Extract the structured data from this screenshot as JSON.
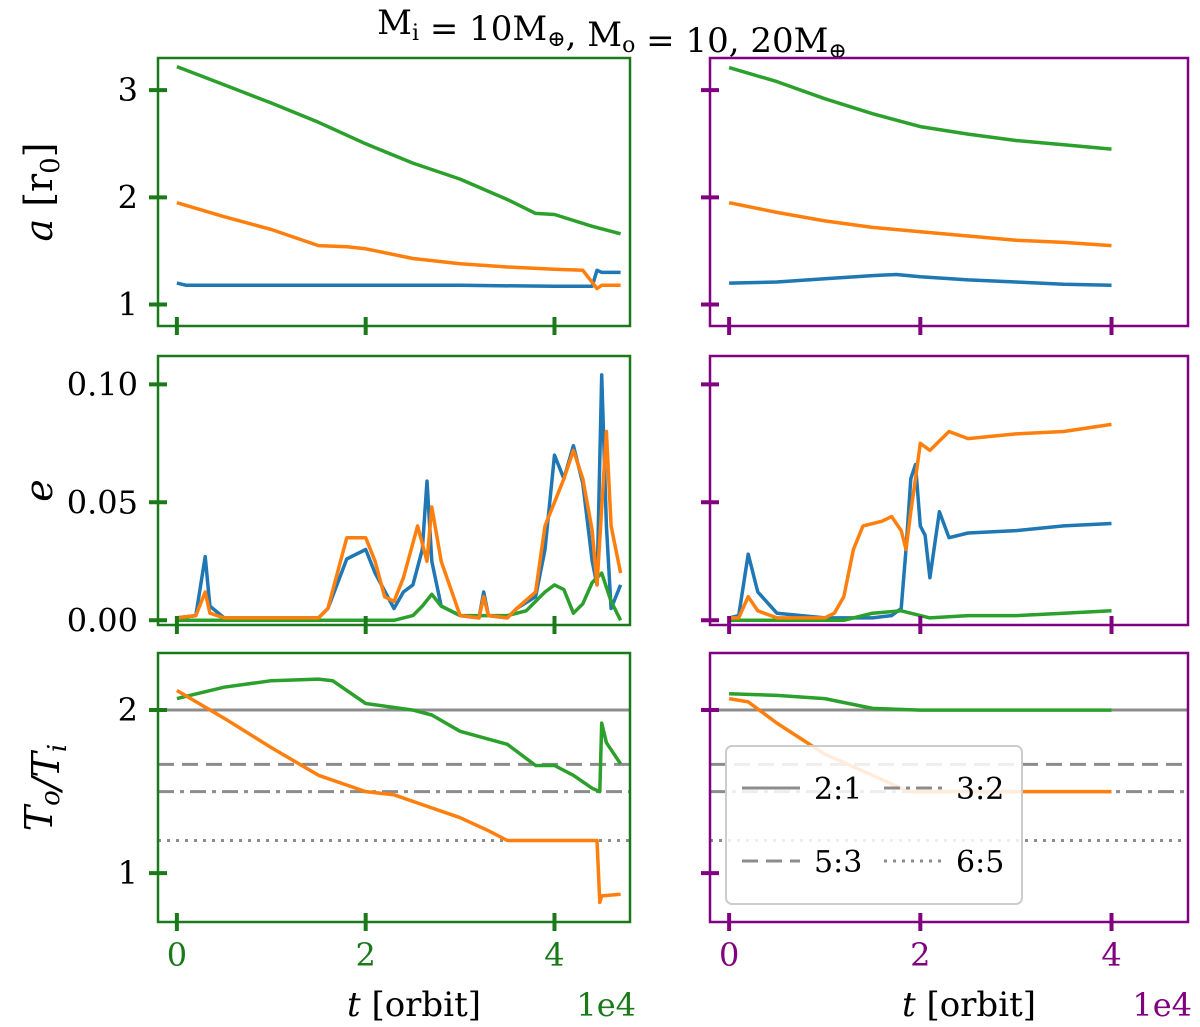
{
  "figure": {
    "title_main": "M",
    "title_html_parts": [
      "M",
      "i",
      " = 10M",
      "⊕",
      ", M",
      "o",
      " = 10, 20M",
      "⊕"
    ],
    "left_color": "#1a7a1a",
    "right_color": "#800080"
  },
  "chart_data": {
    "type": "line",
    "title": "Mi = 10M⊕, Mo = 10, 20M⊕",
    "xlabel": "t [orbit]",
    "x_offset_label": "1e4",
    "xlim": [
      -0.2,
      4.8
    ],
    "xticks": [
      0,
      2,
      4
    ],
    "colors": {
      "inner": "#1f77b4",
      "outer": "#ff7f0e",
      "third": "#2ca02c",
      "resonance": "#8c8c8c"
    },
    "rows": [
      {
        "ylabel": "a [r0]",
        "ylim": [
          0.8,
          3.3
        ],
        "yticks": [
          1,
          2,
          3
        ]
      },
      {
        "ylabel": "e",
        "ylim": [
          -0.002,
          0.112
        ],
        "yticks": [
          0.0,
          0.05,
          0.1
        ],
        "ytick_labels": [
          "0.00",
          "0.05",
          "0.10"
        ]
      },
      {
        "ylabel": "To/Ti",
        "ylim": [
          0.7,
          2.35
        ],
        "yticks": [
          1,
          2
        ]
      }
    ],
    "resonances": [
      {
        "label": "2:1",
        "value": 2.0,
        "style": "solid"
      },
      {
        "label": "5:3",
        "value": 1.667,
        "style": "dashed"
      },
      {
        "label": "3:2",
        "value": 1.5,
        "style": "dashdot"
      },
      {
        "label": "6:5",
        "value": 1.2,
        "style": "dotted"
      }
    ],
    "panels": [
      {
        "name": "left",
        "frame_color": "#1a7a1a",
        "a": {
          "inner": [
            [
              0,
              1.2
            ],
            [
              0.1,
              1.18
            ],
            [
              1,
              1.18
            ],
            [
              2,
              1.18
            ],
            [
              3,
              1.18
            ],
            [
              4,
              1.17
            ],
            [
              4.4,
              1.17
            ],
            [
              4.45,
              1.32
            ],
            [
              4.5,
              1.3
            ],
            [
              4.7,
              1.3
            ]
          ],
          "outer": [
            [
              0,
              1.95
            ],
            [
              0.5,
              1.82
            ],
            [
              1,
              1.7
            ],
            [
              1.5,
              1.55
            ],
            [
              1.8,
              1.54
            ],
            [
              2,
              1.52
            ],
            [
              2.5,
              1.43
            ],
            [
              3,
              1.38
            ],
            [
              3.5,
              1.35
            ],
            [
              4,
              1.33
            ],
            [
              4.3,
              1.32
            ],
            [
              4.45,
              1.15
            ],
            [
              4.5,
              1.18
            ],
            [
              4.7,
              1.18
            ]
          ],
          "third": [
            [
              0,
              3.22
            ],
            [
              0.5,
              3.05
            ],
            [
              1,
              2.88
            ],
            [
              1.5,
              2.7
            ],
            [
              2,
              2.5
            ],
            [
              2.5,
              2.32
            ],
            [
              3,
              2.17
            ],
            [
              3.5,
              1.98
            ],
            [
              3.8,
              1.85
            ],
            [
              4,
              1.84
            ],
            [
              4.4,
              1.73
            ],
            [
              4.7,
              1.66
            ]
          ]
        },
        "e": {
          "inner": [
            [
              0,
              0.001
            ],
            [
              0.2,
              0.002
            ],
            [
              0.3,
              0.027
            ],
            [
              0.35,
              0.006
            ],
            [
              0.5,
              0.001
            ],
            [
              1,
              0.001
            ],
            [
              1.5,
              0.001
            ],
            [
              1.6,
              0.005
            ],
            [
              1.8,
              0.026
            ],
            [
              2,
              0.03
            ],
            [
              2.1,
              0.02
            ],
            [
              2.3,
              0.005
            ],
            [
              2.4,
              0.012
            ],
            [
              2.5,
              0.015
            ],
            [
              2.6,
              0.03
            ],
            [
              2.65,
              0.059
            ],
            [
              2.7,
              0.025
            ],
            [
              2.8,
              0.006
            ],
            [
              3,
              0.002
            ],
            [
              3.2,
              0.001
            ],
            [
              3.25,
              0.012
            ],
            [
              3.3,
              0.002
            ],
            [
              3.5,
              0.001
            ],
            [
              3.6,
              0.005
            ],
            [
              3.8,
              0.01
            ],
            [
              3.9,
              0.03
            ],
            [
              4,
              0.07
            ],
            [
              4.1,
              0.06
            ],
            [
              4.2,
              0.074
            ],
            [
              4.3,
              0.058
            ],
            [
              4.4,
              0.025
            ],
            [
              4.45,
              0.015
            ],
            [
              4.5,
              0.104
            ],
            [
              4.55,
              0.04
            ],
            [
              4.6,
              0.005
            ],
            [
              4.7,
              0.015
            ]
          ],
          "outer": [
            [
              0,
              0.001
            ],
            [
              0.2,
              0.002
            ],
            [
              0.3,
              0.012
            ],
            [
              0.35,
              0.003
            ],
            [
              0.5,
              0.001
            ],
            [
              1,
              0.001
            ],
            [
              1.5,
              0.001
            ],
            [
              1.6,
              0.005
            ],
            [
              1.8,
              0.035
            ],
            [
              2,
              0.035
            ],
            [
              2.1,
              0.025
            ],
            [
              2.2,
              0.01
            ],
            [
              2.3,
              0.008
            ],
            [
              2.4,
              0.018
            ],
            [
              2.55,
              0.04
            ],
            [
              2.65,
              0.025
            ],
            [
              2.7,
              0.048
            ],
            [
              2.8,
              0.025
            ],
            [
              3,
              0.002
            ],
            [
              3.2,
              0.001
            ],
            [
              3.25,
              0.01
            ],
            [
              3.3,
              0.002
            ],
            [
              3.5,
              0.001
            ],
            [
              3.6,
              0.005
            ],
            [
              3.8,
              0.012
            ],
            [
              3.9,
              0.04
            ],
            [
              4,
              0.05
            ],
            [
              4.1,
              0.06
            ],
            [
              4.2,
              0.072
            ],
            [
              4.3,
              0.06
            ],
            [
              4.4,
              0.038
            ],
            [
              4.45,
              0.015
            ],
            [
              4.55,
              0.08
            ],
            [
              4.6,
              0.04
            ],
            [
              4.7,
              0.02
            ]
          ],
          "third": [
            [
              0,
              0.0
            ],
            [
              2.3,
              0.0
            ],
            [
              2.5,
              0.002
            ],
            [
              2.6,
              0.006
            ],
            [
              2.7,
              0.011
            ],
            [
              2.8,
              0.006
            ],
            [
              3,
              0.002
            ],
            [
              3.5,
              0.002
            ],
            [
              3.7,
              0.004
            ],
            [
              3.9,
              0.012
            ],
            [
              4,
              0.015
            ],
            [
              4.1,
              0.013
            ],
            [
              4.2,
              0.003
            ],
            [
              4.3,
              0.007
            ],
            [
              4.4,
              0.016
            ],
            [
              4.5,
              0.02
            ],
            [
              4.6,
              0.008
            ],
            [
              4.7,
              0.0
            ]
          ]
        },
        "ratio": {
          "outer": [
            [
              0,
              2.12
            ],
            [
              0.5,
              1.95
            ],
            [
              1,
              1.77
            ],
            [
              1.5,
              1.6
            ],
            [
              2,
              1.5
            ],
            [
              2.3,
              1.48
            ],
            [
              2.6,
              1.42
            ],
            [
              3,
              1.34
            ],
            [
              3.3,
              1.26
            ],
            [
              3.5,
              1.2
            ],
            [
              4,
              1.2
            ],
            [
              4.45,
              1.2
            ],
            [
              4.48,
              0.82
            ],
            [
              4.5,
              0.86
            ],
            [
              4.7,
              0.87
            ]
          ],
          "third": [
            [
              0,
              2.07
            ],
            [
              0.5,
              2.14
            ],
            [
              1,
              2.18
            ],
            [
              1.5,
              2.19
            ],
            [
              1.65,
              2.18
            ],
            [
              2,
              2.04
            ],
            [
              2.5,
              2.0
            ],
            [
              2.7,
              1.97
            ],
            [
              3,
              1.87
            ],
            [
              3.5,
              1.79
            ],
            [
              3.8,
              1.66
            ],
            [
              4,
              1.66
            ],
            [
              4.2,
              1.6
            ],
            [
              4.4,
              1.52
            ],
            [
              4.48,
              1.5
            ],
            [
              4.5,
              1.92
            ],
            [
              4.55,
              1.8
            ],
            [
              4.7,
              1.67
            ]
          ]
        }
      },
      {
        "name": "right",
        "frame_color": "#800080",
        "a": {
          "inner": [
            [
              0,
              1.2
            ],
            [
              0.5,
              1.21
            ],
            [
              1,
              1.24
            ],
            [
              1.5,
              1.27
            ],
            [
              1.75,
              1.28
            ],
            [
              2,
              1.26
            ],
            [
              2.5,
              1.23
            ],
            [
              3,
              1.21
            ],
            [
              3.5,
              1.19
            ],
            [
              4,
              1.18
            ]
          ],
          "outer": [
            [
              0,
              1.95
            ],
            [
              0.5,
              1.86
            ],
            [
              1,
              1.78
            ],
            [
              1.5,
              1.72
            ],
            [
              2,
              1.68
            ],
            [
              2.5,
              1.64
            ],
            [
              3,
              1.6
            ],
            [
              3.5,
              1.58
            ],
            [
              4,
              1.55
            ]
          ],
          "third": [
            [
              0,
              3.21
            ],
            [
              0.5,
              3.08
            ],
            [
              1,
              2.92
            ],
            [
              1.5,
              2.78
            ],
            [
              2,
              2.66
            ],
            [
              2.5,
              2.59
            ],
            [
              3,
              2.53
            ],
            [
              3.5,
              2.49
            ],
            [
              4,
              2.45
            ]
          ]
        },
        "e": {
          "inner": [
            [
              0,
              0.001
            ],
            [
              0.1,
              0.002
            ],
            [
              0.2,
              0.028
            ],
            [
              0.3,
              0.012
            ],
            [
              0.5,
              0.003
            ],
            [
              1,
              0.001
            ],
            [
              1.5,
              0.001
            ],
            [
              1.7,
              0.002
            ],
            [
              1.8,
              0.005
            ],
            [
              1.85,
              0.03
            ],
            [
              1.9,
              0.06
            ],
            [
              1.95,
              0.066
            ],
            [
              2,
              0.04
            ],
            [
              2.05,
              0.036
            ],
            [
              2.1,
              0.018
            ],
            [
              2.2,
              0.046
            ],
            [
              2.3,
              0.035
            ],
            [
              2.5,
              0.037
            ],
            [
              3,
              0.038
            ],
            [
              3.5,
              0.04
            ],
            [
              4,
              0.041
            ]
          ],
          "outer": [
            [
              0,
              0.001
            ],
            [
              0.1,
              0.001
            ],
            [
              0.2,
              0.01
            ],
            [
              0.3,
              0.004
            ],
            [
              0.5,
              0.001
            ],
            [
              1,
              0.001
            ],
            [
              1.1,
              0.003
            ],
            [
              1.2,
              0.01
            ],
            [
              1.3,
              0.03
            ],
            [
              1.4,
              0.04
            ],
            [
              1.6,
              0.042
            ],
            [
              1.7,
              0.044
            ],
            [
              1.8,
              0.038
            ],
            [
              1.85,
              0.03
            ],
            [
              1.9,
              0.046
            ],
            [
              1.95,
              0.06
            ],
            [
              2.0,
              0.075
            ],
            [
              2.1,
              0.072
            ],
            [
              2.3,
              0.08
            ],
            [
              2.5,
              0.077
            ],
            [
              3,
              0.079
            ],
            [
              3.5,
              0.08
            ],
            [
              4,
              0.083
            ]
          ],
          "third": [
            [
              0,
              0.0
            ],
            [
              1.2,
              0.0
            ],
            [
              1.5,
              0.003
            ],
            [
              1.8,
              0.004
            ],
            [
              2.0,
              0.002
            ],
            [
              2.1,
              0.001
            ],
            [
              2.5,
              0.002
            ],
            [
              3,
              0.002
            ],
            [
              3.5,
              0.003
            ],
            [
              4,
              0.004
            ]
          ]
        },
        "ratio": {
          "outer": [
            [
              0,
              2.07
            ],
            [
              0.2,
              2.05
            ],
            [
              0.5,
              1.92
            ],
            [
              1,
              1.73
            ],
            [
              1.5,
              1.6
            ],
            [
              1.8,
              1.52
            ],
            [
              1.9,
              1.5
            ],
            [
              2.5,
              1.5
            ],
            [
              3,
              1.5
            ],
            [
              4,
              1.5
            ]
          ],
          "third": [
            [
              0,
              2.1
            ],
            [
              0.5,
              2.09
            ],
            [
              1,
              2.07
            ],
            [
              1.5,
              2.01
            ],
            [
              2,
              2.0
            ],
            [
              3,
              2.0
            ],
            [
              4,
              2.0
            ]
          ]
        }
      }
    ]
  },
  "legend": {
    "entries": [
      {
        "label": "2:1",
        "style": "solid"
      },
      {
        "label": "3:2",
        "style": "dashdot"
      },
      {
        "label": "5:3",
        "style": "dashed"
      },
      {
        "label": "6:5",
        "style": "dotted"
      }
    ]
  }
}
